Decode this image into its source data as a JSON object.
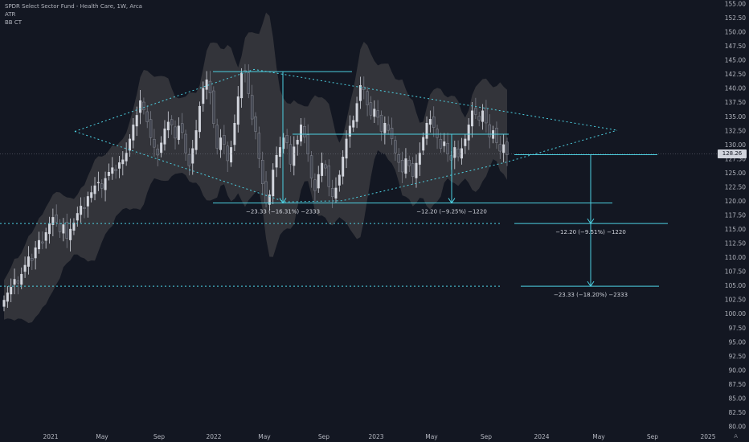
{
  "legend": {
    "title": "SPDR Select Sector Fund - Health Care, 1W, Arca",
    "indicator1": "ATR",
    "indicator2": "BB CT"
  },
  "price_tag": "128.26",
  "corner_label": "A",
  "colors": {
    "background": "#131722",
    "up_candle": "#d1d4dc",
    "down_candle": "#434651",
    "band_fill": "#3a3a3e",
    "cyan": "#4dd0e1",
    "axis_text": "#b2b5be"
  },
  "chart_data": {
    "type": "candlestick",
    "title": "SPDR Select Sector Fund - Health Care, 1W, Arca",
    "y_ticks": [
      "80.00",
      "82.50",
      "85.00",
      "87.50",
      "90.00",
      "92.50",
      "95.00",
      "97.50",
      "100.00",
      "102.50",
      "105.00",
      "107.50",
      "110.00",
      "112.50",
      "115.00",
      "117.50",
      "120.00",
      "122.50",
      "125.00",
      "127.50",
      "130.00",
      "132.50",
      "135.00",
      "137.50",
      "140.00",
      "142.50",
      "145.00",
      "147.50",
      "150.00",
      "152.50",
      "155.00"
    ],
    "ylim": [
      79.5,
      155.8
    ],
    "x_ticks": [
      "2021",
      "May",
      "Sep",
      "2022",
      "May",
      "Sep",
      "2023",
      "May",
      "Sep",
      "2024",
      "May",
      "Sep",
      "2025"
    ],
    "last_price": 128.26,
    "closes": [
      102.5,
      103.8,
      104.8,
      106.2,
      105.5,
      107.1,
      108.7,
      110.2,
      109.5,
      111.8,
      113.1,
      112.6,
      114.5,
      116.1,
      117.2,
      116.3,
      114.6,
      115.9,
      113.4,
      115.1,
      116.2,
      117.9,
      119.2,
      118.7,
      120.9,
      121.6,
      122.8,
      123.4,
      122.3,
      124.1,
      125.2,
      126.0,
      125.4,
      126.9,
      127.4,
      128.6,
      131.1,
      133.6,
      135.3,
      137.9,
      136.2,
      134.1,
      131.3,
      129.6,
      128.2,
      130.4,
      132.9,
      134.1,
      133.5,
      131.2,
      133.4,
      132.2,
      128.6,
      126.3,
      129.4,
      132.6,
      136.9,
      140.1,
      141.6,
      139.2,
      133.8,
      129.4,
      131.3,
      130.1,
      127.2,
      129.6,
      133.9,
      138.6,
      142.8,
      143.1,
      139.1,
      134.6,
      132.4,
      127.6,
      123.1,
      119.7,
      121.2,
      125.6,
      128.2,
      129.6,
      131.3,
      130.4,
      126.6,
      129.7,
      130.9,
      133.6,
      131.4,
      128.4,
      124.1,
      121.9,
      124.8,
      126.8,
      125.9,
      122.6,
      120.8,
      122.4,
      124.7,
      127.9,
      131.1,
      133.4,
      134.4,
      137.4,
      140.6,
      139.8,
      137.1,
      135.3,
      136.4,
      134.9,
      132.4,
      133.9,
      132.6,
      131.1,
      128.6,
      126.9,
      125.2,
      127.6,
      126.3,
      124.4,
      126.8,
      128.6,
      131.4,
      133.9,
      134.6,
      133.1,
      131.3,
      129.4,
      130.6,
      128.4,
      127.3,
      129.6,
      127.9,
      129.4,
      131.1,
      133.6,
      136.1,
      135.4,
      134.4,
      136.1,
      133.9,
      131.4,
      132.6,
      130.4,
      128.9,
      130.1,
      128.26
    ],
    "measurements": [
      {
        "label": "−23.33 (−16.31%) −2333",
        "from": 143.0,
        "to": 119.7
      },
      {
        "label": "−12.20 (−9.25%) −1220",
        "from": 131.9,
        "to": 119.7
      },
      {
        "label": "−12.20 (−9.51%) −1220",
        "from": 128.26,
        "to": 116.06
      },
      {
        "label": "−23.33 (−18.20%) −2333",
        "from": 128.26,
        "to": 104.93
      }
    ],
    "target_levels": [
      116.06,
      104.93
    ],
    "grid": false,
    "indicators": [
      "ATR",
      "BB CT"
    ]
  }
}
